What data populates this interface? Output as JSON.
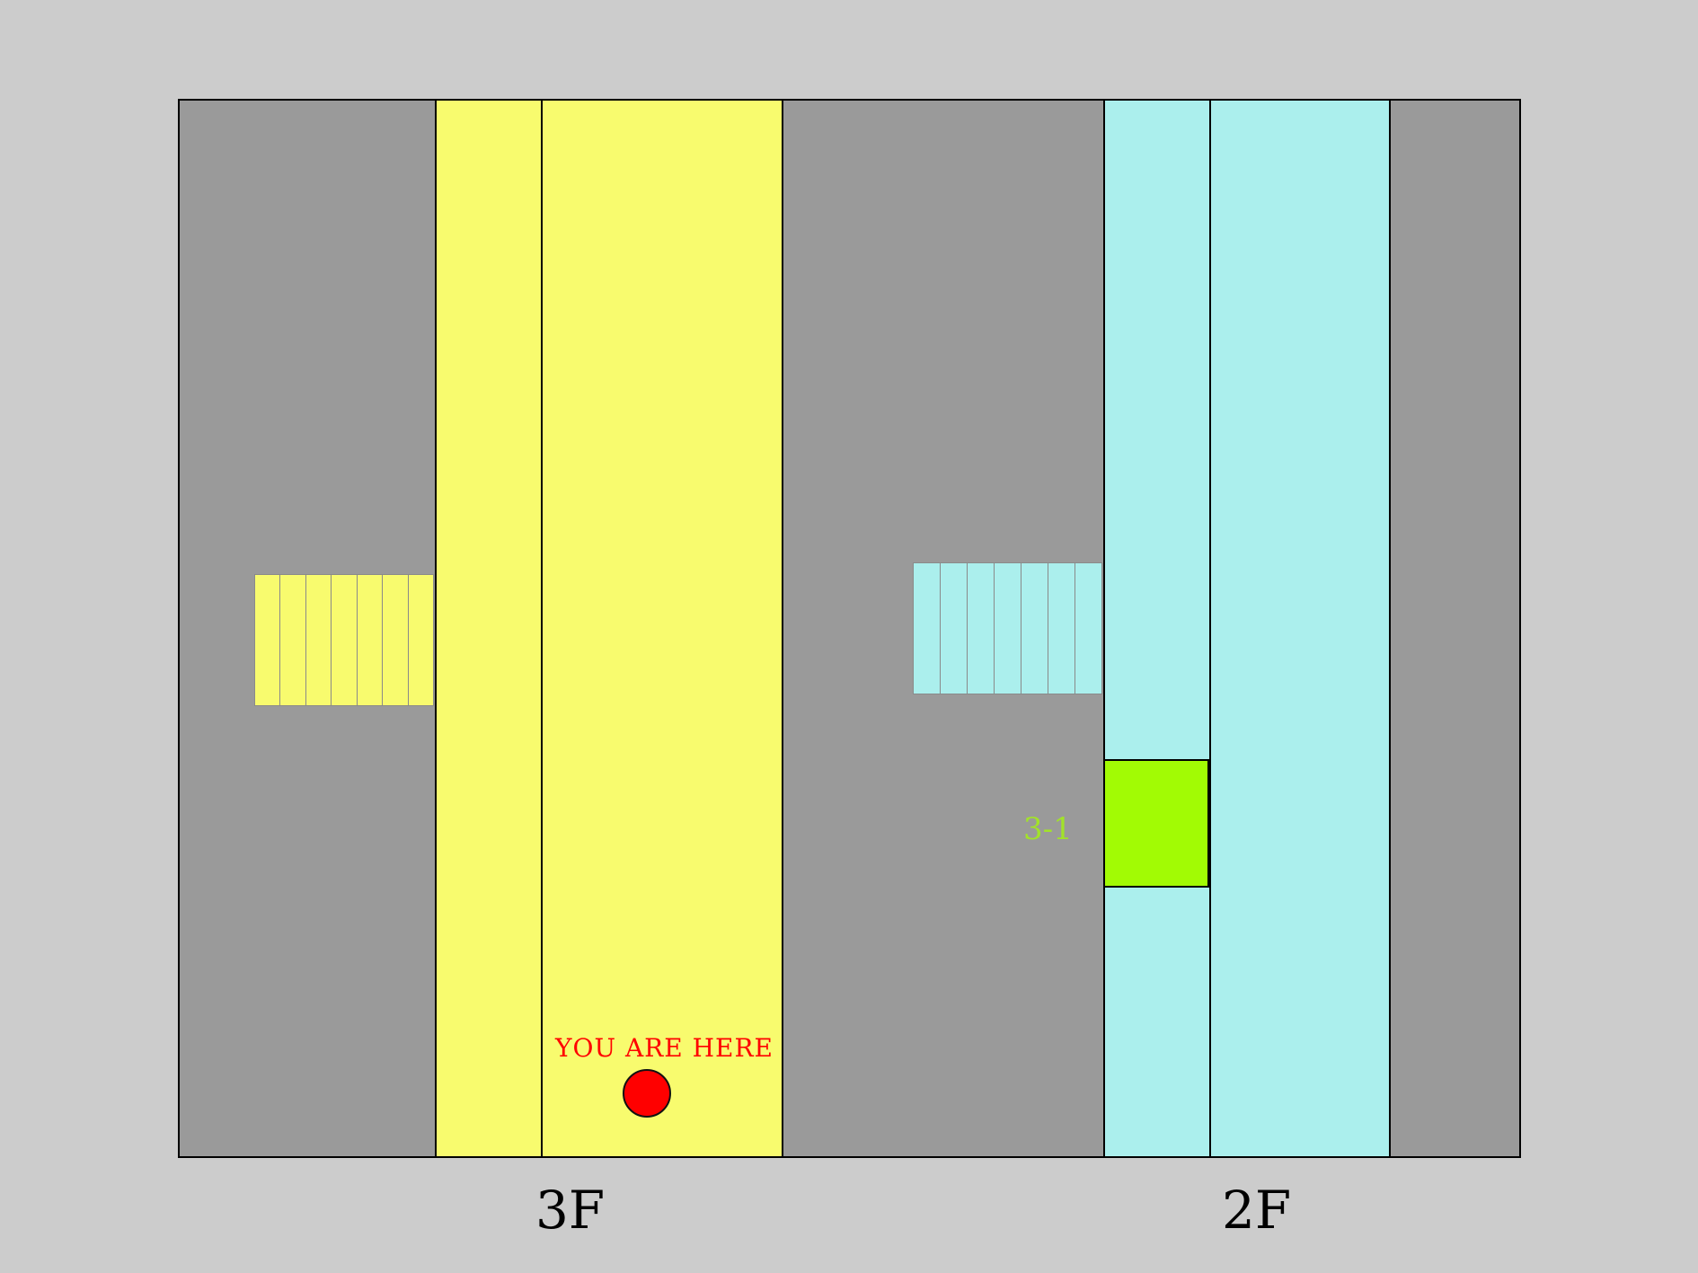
{
  "colors": {
    "background": "#cccccc",
    "corridor": "#9a9a9a",
    "floor_3f": "#f8fb6e",
    "floor_2f": "#abefed",
    "highlight_room": "#a2fb04",
    "highlight_label": "#a2e22a",
    "you_are_here": "#ff0000"
  },
  "map": {
    "you_are_here_label": "YOU ARE HERE",
    "room_label": "3-1",
    "floor_labels": {
      "floor_3f": "3F",
      "floor_2f": "2F"
    }
  }
}
